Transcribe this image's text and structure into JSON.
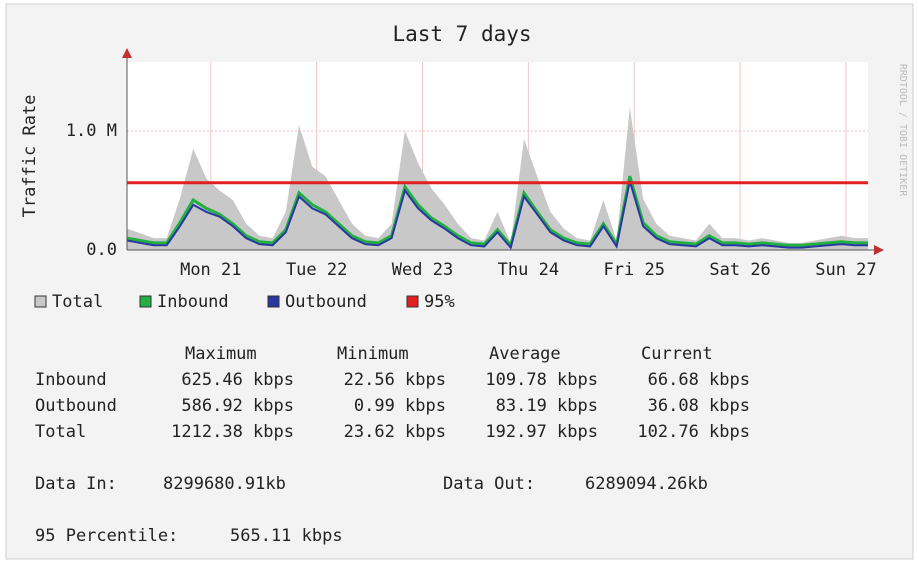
{
  "chart_data": {
    "type": "area",
    "title": "Last 7 days",
    "y_label": "Traffic Rate",
    "watermark": "RRDTOOL / TOBI OETIKER",
    "x": [
      0,
      3,
      6,
      9,
      12,
      15,
      18,
      21,
      24,
      27,
      30,
      33,
      36,
      39,
      42,
      45,
      48,
      51,
      54,
      57,
      60,
      63,
      66,
      69,
      72,
      75,
      78,
      81,
      84,
      87,
      90,
      93,
      96,
      99,
      102,
      105,
      108,
      111,
      114,
      117,
      120,
      123,
      126,
      129,
      132,
      135,
      138,
      141,
      144,
      147,
      150,
      153,
      156,
      159,
      162,
      165,
      168
    ],
    "xlim": [
      0,
      168
    ],
    "xticks": [
      {
        "value": 19,
        "label": "Mon 21"
      },
      {
        "value": 43,
        "label": "Tue 22"
      },
      {
        "value": 67,
        "label": "Wed 23"
      },
      {
        "value": 91,
        "label": "Thu 24"
      },
      {
        "value": 115,
        "label": "Fri 25"
      },
      {
        "value": 139,
        "label": "Sat 26"
      },
      {
        "value": 163,
        "label": "Sun 27"
      }
    ],
    "ylim": [
      0,
      1580000
    ],
    "yticks": [
      {
        "value": 0,
        "label": "0.0"
      },
      {
        "value": 1000000,
        "label": "1.0 M"
      }
    ],
    "grid": true,
    "series": [
      {
        "name": "Total",
        "color": "#c8c8c8",
        "values": [
          180000,
          140000,
          100000,
          100000,
          430000,
          850000,
          600000,
          500000,
          420000,
          220000,
          120000,
          100000,
          320000,
          1050000,
          700000,
          620000,
          420000,
          220000,
          120000,
          100000,
          220000,
          1000000,
          730000,
          520000,
          380000,
          220000,
          100000,
          80000,
          320000,
          60000,
          930000,
          620000,
          320000,
          180000,
          100000,
          80000,
          420000,
          80000,
          1200000,
          430000,
          220000,
          120000,
          100000,
          80000,
          220000,
          100000,
          100000,
          80000,
          100000,
          80000,
          60000,
          60000,
          80000,
          100000,
          120000,
          100000,
          100000
        ]
      },
      {
        "name": "Inbound",
        "color": "#22b040",
        "values": [
          100000,
          80000,
          60000,
          60000,
          230000,
          420000,
          350000,
          300000,
          220000,
          120000,
          70000,
          60000,
          170000,
          480000,
          380000,
          320000,
          220000,
          120000,
          70000,
          60000,
          120000,
          530000,
          380000,
          270000,
          200000,
          120000,
          60000,
          50000,
          170000,
          40000,
          480000,
          320000,
          170000,
          100000,
          60000,
          50000,
          220000,
          50000,
          620000,
          230000,
          120000,
          70000,
          60000,
          50000,
          120000,
          60000,
          60000,
          50000,
          60000,
          50000,
          40000,
          40000,
          50000,
          60000,
          70000,
          60000,
          60000
        ]
      },
      {
        "name": "Outbound",
        "color": "#2838a0",
        "values": [
          80000,
          60000,
          40000,
          40000,
          200000,
          380000,
          320000,
          280000,
          200000,
          100000,
          50000,
          40000,
          150000,
          450000,
          350000,
          300000,
          200000,
          100000,
          50000,
          40000,
          100000,
          500000,
          350000,
          250000,
          180000,
          100000,
          40000,
          30000,
          150000,
          20000,
          450000,
          300000,
          150000,
          80000,
          40000,
          30000,
          200000,
          30000,
          580000,
          200000,
          100000,
          50000,
          40000,
          30000,
          100000,
          40000,
          40000,
          30000,
          40000,
          30000,
          20000,
          20000,
          30000,
          40000,
          50000,
          40000,
          40000
        ]
      }
    ],
    "threshold": {
      "name": "95%",
      "color": "#e02020",
      "value": 565110
    }
  },
  "stats": {
    "columns": [
      "Maximum",
      "Minimum",
      "Average",
      "Current"
    ],
    "rows": [
      {
        "name": "Inbound",
        "cells": [
          "625.46 kbps",
          "22.56 kbps",
          "109.78 kbps",
          "66.68 kbps"
        ]
      },
      {
        "name": "Outbound",
        "cells": [
          "586.92 kbps",
          "0.99 kbps",
          "83.19 kbps",
          "36.08 kbps"
        ]
      },
      {
        "name": "Total",
        "cells": [
          "1212.38 kbps",
          "23.62 kbps",
          "192.97 kbps",
          "102.76 kbps"
        ]
      }
    ],
    "data_in": {
      "label": "Data In:",
      "value": "8299680.91kb"
    },
    "data_out": {
      "label": "Data Out:",
      "value": "6289094.26kb"
    },
    "percentile": {
      "label": "95 Percentile:",
      "value": "565.11 kbps"
    }
  }
}
